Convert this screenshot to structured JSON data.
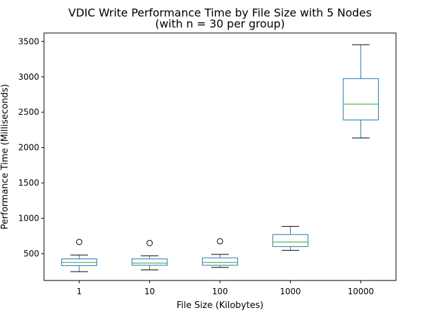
{
  "chart_data": {
    "type": "box",
    "title": "VDIC Write Performance Time by File Size with 5 Nodes",
    "subtitle": "(with n = 30 per group)",
    "xlabel": "File Size (Kilobytes)",
    "ylabel": "Performance Time (Milliseconds)",
    "categories": [
      "1",
      "10",
      "100",
      "1000",
      "10000"
    ],
    "boxes": [
      {
        "category": "1",
        "whisker_low": 245,
        "q1": 330,
        "median": 375,
        "q3": 425,
        "whisker_high": 480,
        "outliers": [
          665
        ]
      },
      {
        "category": "10",
        "whisker_low": 270,
        "q1": 335,
        "median": 365,
        "q3": 425,
        "whisker_high": 470,
        "outliers": [
          650
        ]
      },
      {
        "category": "100",
        "whisker_low": 305,
        "q1": 335,
        "median": 375,
        "q3": 440,
        "whisker_high": 490,
        "outliers": [
          675
        ]
      },
      {
        "category": "1000",
        "whisker_low": 545,
        "q1": 600,
        "median": 665,
        "q3": 770,
        "whisker_high": 885,
        "outliers": []
      },
      {
        "category": "10000",
        "whisker_low": 2135,
        "q1": 2390,
        "median": 2615,
        "q3": 2975,
        "whisker_high": 3455,
        "outliers": []
      }
    ],
    "yticks": [
      500,
      1000,
      1500,
      2000,
      2500,
      3000,
      3500
    ],
    "ylim": [
      120,
      3620
    ],
    "grid": false,
    "legend": "none",
    "colors": {
      "box": "#1f77b4",
      "median": "#2ca02c",
      "whisker": "#000000",
      "outlier": "#000000"
    }
  }
}
